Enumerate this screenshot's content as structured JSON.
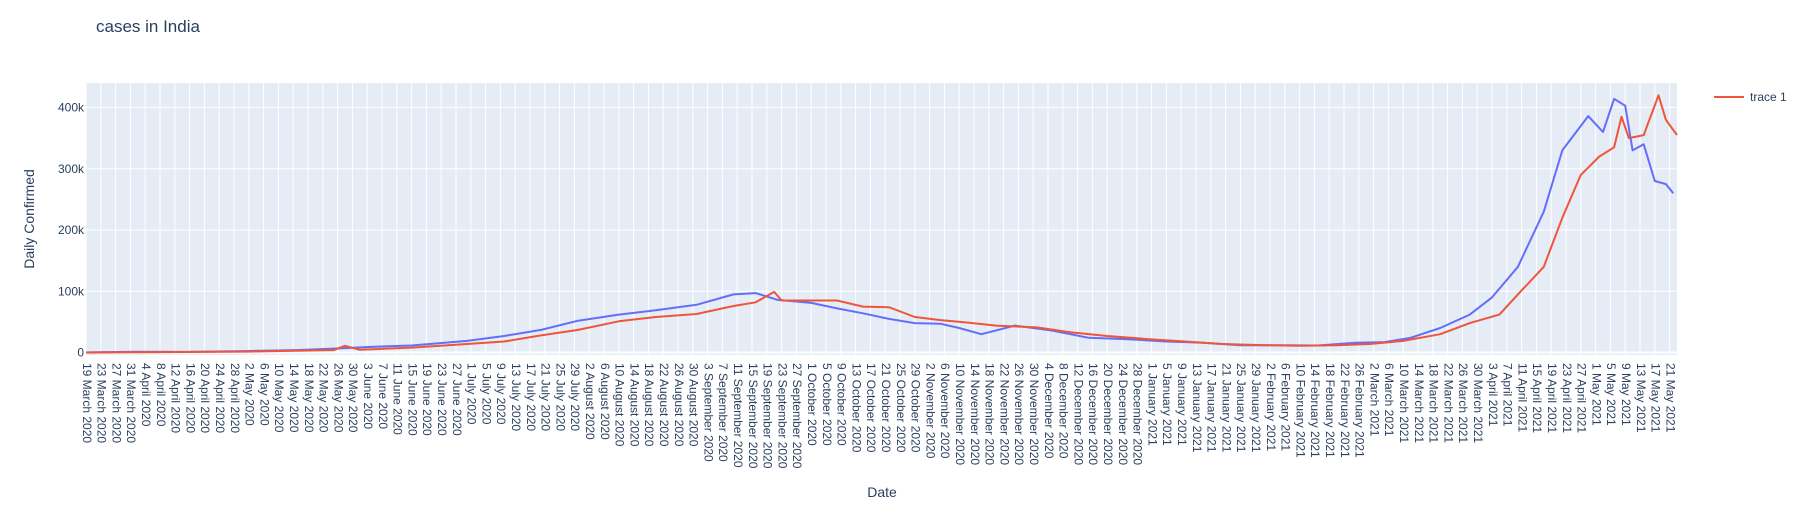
{
  "chart_data": {
    "type": "line",
    "title": "cases in India",
    "xlabel": "Date",
    "ylabel": "Daily Confirmed",
    "ylim": [
      -4000,
      440000
    ],
    "y_ticks": [
      0,
      100000,
      200000,
      300000,
      400000
    ],
    "y_tick_labels": [
      "0",
      "100k",
      "200k",
      "300k",
      "400k"
    ],
    "x_start": "2020-03-19",
    "x_end": "2021-05-23",
    "x_tick_labels": [
      "19 March 2020",
      "23 March 2020",
      "27 March 2020",
      "31 March 2020",
      "4 April 2020",
      "8 April 2020",
      "12 April 2020",
      "16 April 2020",
      "20 April 2020",
      "24 April 2020",
      "28 April 2020",
      "2 May 2020",
      "6 May 2020",
      "10 May 2020",
      "14 May 2020",
      "18 May 2020",
      "22 May 2020",
      "26 May 2020",
      "30 May 2020",
      "3 June 2020",
      "7 June 2020",
      "11 June 2020",
      "15 June 2020",
      "19 June 2020",
      "23 June 2020",
      "27 June 2020",
      "1 July 2020",
      "5 July 2020",
      "9 July 2020",
      "13 July 2020",
      "17 July 2020",
      "21 July 2020",
      "25 July 2020",
      "29 July 2020",
      "2 August 2020",
      "6 August 2020",
      "10 August 2020",
      "14 August 2020",
      "18 August 2020",
      "22 August 2020",
      "26 August 2020",
      "30 August 2020",
      "3 September 2020",
      "7 September 2020",
      "11 September 2020",
      "15 September 2020",
      "19 September 2020",
      "23 September 2020",
      "27 September 2020",
      "1 October 2020",
      "5 October 2020",
      "9 October 2020",
      "13 October 2020",
      "17 October 2020",
      "21 October 2020",
      "25 October 2020",
      "29 October 2020",
      "2 November 2020",
      "6 November 2020",
      "10 November 2020",
      "14 November 2020",
      "18 November 2020",
      "22 November 2020",
      "26 November 2020",
      "30 November 2020",
      "4 December 2020",
      "8 December 2020",
      "12 December 2020",
      "16 December 2020",
      "20 December 2020",
      "24 December 2020",
      "28 December 2020",
      "1 January 2021",
      "5 January 2021",
      "9 January 2021",
      "13 January 2021",
      "17 January 2021",
      "21 January 2021",
      "25 January 2021",
      "29 January 2021",
      "2 February 2021",
      "6 February 2021",
      "10 February 2021",
      "14 February 2021",
      "18 February 2021",
      "22 February 2021",
      "26 February 2021",
      "2 March 2021",
      "6 March 2021",
      "10 March 2021",
      "14 March 2021",
      "18 March 2021",
      "22 March 2021",
      "26 March 2021",
      "30 March 2021",
      "3 April 2021",
      "7 April 2021",
      "11 April 2021",
      "15 April 2021",
      "19 April 2021",
      "23 April 2021",
      "27 April 2021",
      "1 May 2021",
      "5 May 2021",
      "9 May 2021",
      "13 May 2021",
      "17 May 2021",
      "21 May 2021"
    ],
    "legend_position": "right",
    "series": [
      {
        "name": "",
        "color": "#636efa",
        "points": [
          [
            "2020-03-19",
            200
          ],
          [
            "2020-04-01",
            1200
          ],
          [
            "2020-04-15",
            1100
          ],
          [
            "2020-05-01",
            2400
          ],
          [
            "2020-05-15",
            4000
          ],
          [
            "2020-05-25",
            6500
          ],
          [
            "2020-06-05",
            9500
          ],
          [
            "2020-06-15",
            11500
          ],
          [
            "2020-06-30",
            19000
          ],
          [
            "2020-07-10",
            27000
          ],
          [
            "2020-07-20",
            37000
          ],
          [
            "2020-07-30",
            52000
          ],
          [
            "2020-08-10",
            62000
          ],
          [
            "2020-08-20",
            69000
          ],
          [
            "2020-08-31",
            78000
          ],
          [
            "2020-09-10",
            95000
          ],
          [
            "2020-09-16",
            97000
          ],
          [
            "2020-09-22",
            86000
          ],
          [
            "2020-10-01",
            81000
          ],
          [
            "2020-10-08",
            72000
          ],
          [
            "2020-10-15",
            64000
          ],
          [
            "2020-10-22",
            55000
          ],
          [
            "2020-10-29",
            48000
          ],
          [
            "2020-11-05",
            47000
          ],
          [
            "2020-11-10",
            40000
          ],
          [
            "2020-11-16",
            30000
          ],
          [
            "2020-11-25",
            44000
          ],
          [
            "2020-12-05",
            36000
          ],
          [
            "2020-12-15",
            24000
          ],
          [
            "2020-12-25",
            22000
          ],
          [
            "2021-01-05",
            18000
          ],
          [
            "2021-01-15",
            16000
          ],
          [
            "2021-01-25",
            12000
          ],
          [
            "2021-02-05",
            12000
          ],
          [
            "2021-02-15",
            11500
          ],
          [
            "2021-02-25",
            16000
          ],
          [
            "2021-03-05",
            17000
          ],
          [
            "2021-03-12",
            24000
          ],
          [
            "2021-03-20",
            40000
          ],
          [
            "2021-03-28",
            62000
          ],
          [
            "2021-04-03",
            90000
          ],
          [
            "2021-04-10",
            140000
          ],
          [
            "2021-04-17",
            230000
          ],
          [
            "2021-04-22",
            330000
          ],
          [
            "2021-04-29",
            386000
          ],
          [
            "2021-05-03",
            360000
          ],
          [
            "2021-05-06",
            414000
          ],
          [
            "2021-05-09",
            403000
          ],
          [
            "2021-05-11",
            330000
          ],
          [
            "2021-05-14",
            340000
          ],
          [
            "2021-05-17",
            280000
          ],
          [
            "2021-05-20",
            275000
          ],
          [
            "2021-05-22",
            260000
          ]
        ]
      },
      {
        "name": "trace 1",
        "color": "#ef553b",
        "points": [
          [
            "2020-03-19",
            100
          ],
          [
            "2020-04-01",
            600
          ],
          [
            "2020-04-15",
            900
          ],
          [
            "2020-05-01",
            1500
          ],
          [
            "2020-05-15",
            2800
          ],
          [
            "2020-05-25",
            4000
          ],
          [
            "2020-05-28",
            11000
          ],
          [
            "2020-06-01",
            4500
          ],
          [
            "2020-06-15",
            8000
          ],
          [
            "2020-06-30",
            14000
          ],
          [
            "2020-07-10",
            18000
          ],
          [
            "2020-07-20",
            28000
          ],
          [
            "2020-07-30",
            37000
          ],
          [
            "2020-08-10",
            51000
          ],
          [
            "2020-08-20",
            58000
          ],
          [
            "2020-08-31",
            63000
          ],
          [
            "2020-09-10",
            76000
          ],
          [
            "2020-09-16",
            82000
          ],
          [
            "2020-09-21",
            99000
          ],
          [
            "2020-09-23",
            85000
          ],
          [
            "2020-10-01",
            85000
          ],
          [
            "2020-10-08",
            85000
          ],
          [
            "2020-10-15",
            75000
          ],
          [
            "2020-10-22",
            74000
          ],
          [
            "2020-10-29",
            58000
          ],
          [
            "2020-11-05",
            53000
          ],
          [
            "2020-11-12",
            49000
          ],
          [
            "2020-11-20",
            44000
          ],
          [
            "2020-12-01",
            41000
          ],
          [
            "2020-12-10",
            33000
          ],
          [
            "2020-12-20",
            27000
          ],
          [
            "2020-12-31",
            22000
          ],
          [
            "2021-01-10",
            18000
          ],
          [
            "2021-01-20",
            14000
          ],
          [
            "2021-02-01",
            12000
          ],
          [
            "2021-02-10",
            11000
          ],
          [
            "2021-02-20",
            12000
          ],
          [
            "2021-03-01",
            14000
          ],
          [
            "2021-03-10",
            19000
          ],
          [
            "2021-03-20",
            30000
          ],
          [
            "2021-03-28",
            48000
          ],
          [
            "2021-04-05",
            62000
          ],
          [
            "2021-04-10",
            95000
          ],
          [
            "2021-04-17",
            140000
          ],
          [
            "2021-04-22",
            220000
          ],
          [
            "2021-04-27",
            290000
          ],
          [
            "2021-05-02",
            320000
          ],
          [
            "2021-05-06",
            335000
          ],
          [
            "2021-05-08",
            385000
          ],
          [
            "2021-05-10",
            350000
          ],
          [
            "2021-05-14",
            355000
          ],
          [
            "2021-05-18",
            420000
          ],
          [
            "2021-05-20",
            380000
          ],
          [
            "2021-05-23",
            355000
          ]
        ]
      }
    ]
  }
}
